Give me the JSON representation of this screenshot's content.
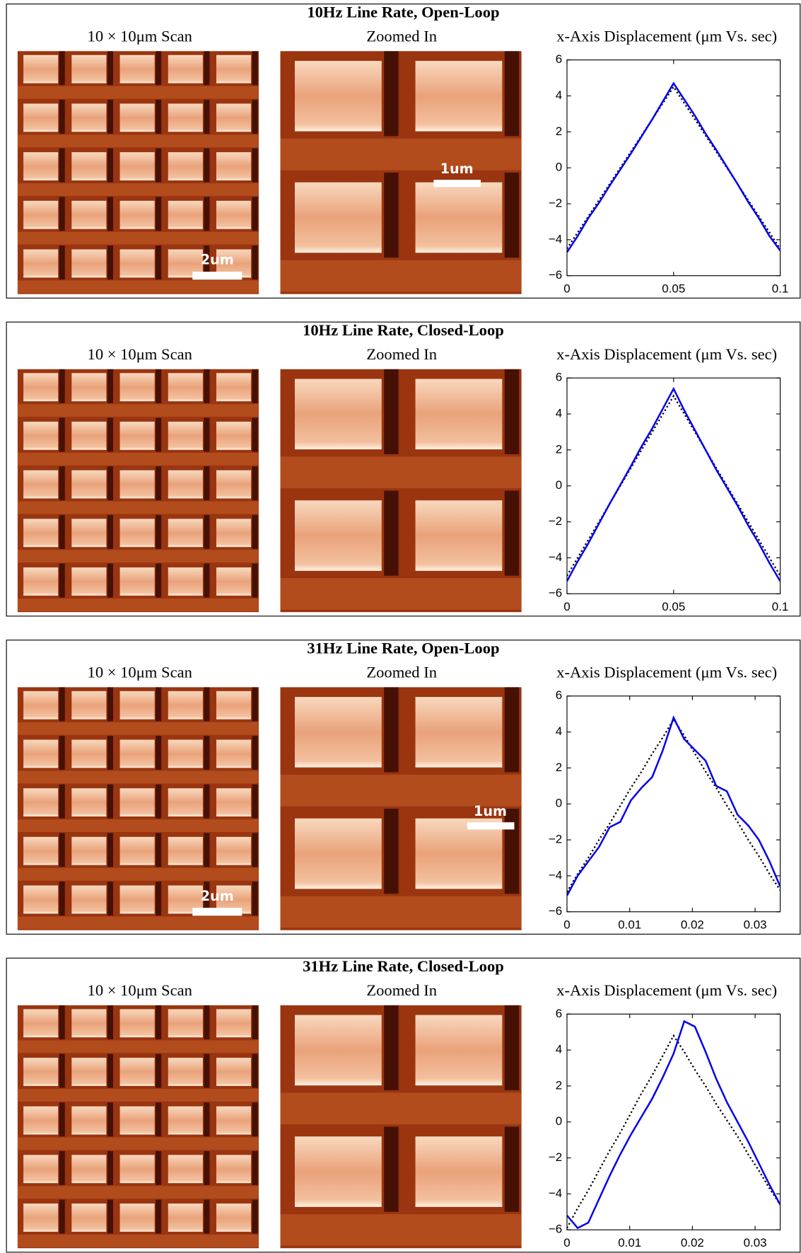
{
  "panels": [
    {
      "title": "10Hz Line Rate, Open-Loop",
      "scan_caption": "10 × 10μm Scan",
      "zoom_caption": "Zoomed In",
      "scan_scale_bar": "2um",
      "zoom_scale_bar": "1um"
    },
    {
      "title": "10Hz Line Rate, Closed-Loop",
      "scan_caption": "10 × 10μm Scan",
      "zoom_caption": "Zoomed In"
    },
    {
      "title": "31Hz Line Rate, Open-Loop",
      "scan_caption": "10 × 10μm Scan",
      "zoom_caption": "Zoomed In",
      "scan_scale_bar": "2um",
      "zoom_scale_bar": "1um"
    },
    {
      "title": "31Hz Line Rate, Closed-Loop",
      "scan_caption": "10 × 10μm Scan",
      "zoom_caption": "Zoomed In"
    }
  ],
  "chart_data": [
    {
      "type": "line",
      "title": "x-Axis Displacement (μm Vs. sec)",
      "x": [
        0,
        0.005,
        0.01,
        0.015,
        0.02,
        0.025,
        0.03,
        0.035,
        0.04,
        0.045,
        0.05,
        0.055,
        0.06,
        0.065,
        0.07,
        0.075,
        0.08,
        0.085,
        0.09,
        0.095,
        0.1
      ],
      "series": [
        {
          "color": "#0000ee",
          "style": "solid",
          "values": [
            -4.7,
            -3.8,
            -2.8,
            -1.95,
            -1.0,
            -0.1,
            0.8,
            1.75,
            2.7,
            3.7,
            4.7,
            3.8,
            2.9,
            1.9,
            1.0,
            0.05,
            -0.9,
            -1.9,
            -2.8,
            -3.8,
            -4.6
          ]
        },
        {
          "color": "#000000",
          "style": "dotted",
          "values": [
            -4.5,
            -3.6,
            -2.7,
            -1.8,
            -0.9,
            0,
            0.9,
            1.8,
            2.7,
            3.6,
            4.5,
            3.6,
            2.7,
            1.8,
            0.9,
            0,
            -0.9,
            -1.8,
            -2.7,
            -3.6,
            -4.5
          ]
        }
      ],
      "xlim": [
        0,
        0.1
      ],
      "xticks": [
        0,
        0.05,
        0.1
      ],
      "ylim": [
        -6,
        6
      ],
      "yticks": [
        {
          "value": -6,
          "label": "−6"
        },
        {
          "value": -4,
          "label": "−4"
        },
        {
          "value": -2,
          "label": "−2"
        },
        0,
        2,
        4,
        6
      ]
    },
    {
      "type": "line",
      "title": "x-Axis Displacement (μm Vs. sec)",
      "x": [
        0,
        0.005,
        0.01,
        0.015,
        0.02,
        0.025,
        0.03,
        0.035,
        0.04,
        0.045,
        0.05,
        0.055,
        0.06,
        0.065,
        0.07,
        0.075,
        0.08,
        0.085,
        0.09,
        0.095,
        0.1
      ],
      "series": [
        {
          "color": "#0000ee",
          "style": "solid",
          "values": [
            -5.3,
            -4.2,
            -3.2,
            -2.1,
            -1.0,
            0.05,
            1.1,
            2.2,
            3.2,
            4.3,
            5.4,
            4.2,
            3.1,
            2.0,
            0.9,
            -0.1,
            -1.1,
            -2.2,
            -3.2,
            -4.3,
            -5.3
          ]
        },
        {
          "color": "#000000",
          "style": "dotted",
          "values": [
            -5,
            -4,
            -3,
            -2,
            -1,
            0,
            1,
            2,
            3,
            4,
            5,
            4,
            3,
            2,
            1,
            0,
            -1,
            -2,
            -3,
            -4,
            -5
          ]
        }
      ],
      "xlim": [
        0,
        0.1
      ],
      "xticks": [
        0,
        0.05,
        0.1
      ],
      "ylim": [
        -6,
        6
      ],
      "yticks": [
        {
          "value": -6,
          "label": "−6"
        },
        {
          "value": -4,
          "label": "−4"
        },
        {
          "value": -2,
          "label": "−2"
        },
        0,
        2,
        4,
        6
      ]
    },
    {
      "type": "line",
      "title": "x-Axis Displacement (μm Vs. sec)",
      "x": [
        0,
        0.0017,
        0.0034,
        0.0051,
        0.0068,
        0.0085,
        0.0102,
        0.0119,
        0.0136,
        0.0153,
        0.017,
        0.0187,
        0.0204,
        0.0221,
        0.0238,
        0.0255,
        0.0272,
        0.0289,
        0.0306,
        0.0323,
        0.034
      ],
      "series": [
        {
          "color": "#0000ee",
          "style": "solid",
          "values": [
            -5.1,
            -4.0,
            -3.2,
            -2.4,
            -1.3,
            -1.0,
            0.2,
            0.9,
            1.5,
            3.0,
            4.8,
            3.6,
            3.0,
            2.4,
            1.0,
            0.7,
            -0.6,
            -1.2,
            -2.0,
            -3.2,
            -4.6
          ]
        },
        {
          "color": "#000000",
          "style": "dotted",
          "values": [
            -4.9,
            -3.9,
            -3.0,
            -2.0,
            -1.1,
            -0.1,
            0.9,
            1.8,
            2.8,
            3.7,
            4.7,
            3.8,
            2.8,
            1.8,
            0.9,
            -0.1,
            -1.0,
            -2.0,
            -2.9,
            -3.9,
            -4.8
          ]
        }
      ],
      "xlim": [
        0,
        0.034
      ],
      "xticks": [
        0,
        0.01,
        0.02,
        0.03
      ],
      "ylim": [
        -6,
        6
      ],
      "yticks": [
        {
          "value": -6,
          "label": "−6"
        },
        {
          "value": -4,
          "label": "−4"
        },
        {
          "value": -2,
          "label": "−2"
        },
        0,
        2,
        4,
        6
      ]
    },
    {
      "type": "line",
      "title": "x-Axis Displacement (μm Vs. sec)",
      "x": [
        0,
        0.0017,
        0.0034,
        0.0051,
        0.0068,
        0.0085,
        0.0102,
        0.0119,
        0.0136,
        0.0153,
        0.017,
        0.0187,
        0.0204,
        0.0221,
        0.0238,
        0.0255,
        0.0272,
        0.0289,
        0.0306,
        0.0323,
        0.034
      ],
      "series": [
        {
          "color": "#0000ee",
          "style": "solid",
          "values": [
            -5.2,
            -5.9,
            -5.6,
            -4.3,
            -3.0,
            -1.8,
            -0.7,
            0.3,
            1.3,
            2.5,
            3.8,
            5.6,
            5.3,
            3.9,
            2.4,
            1.1,
            0.0,
            -1.1,
            -2.3,
            -3.5,
            -4.6
          ]
        },
        {
          "color": "#000000",
          "style": "dotted",
          "values": [
            -5.9,
            -4.8,
            -3.8,
            -2.7,
            -1.6,
            -0.6,
            0.5,
            1.6,
            2.6,
            3.7,
            4.8,
            3.9,
            2.9,
            2.0,
            1.0,
            0.1,
            -0.8,
            -1.8,
            -2.7,
            -3.7,
            -4.6
          ]
        }
      ],
      "xlim": [
        0,
        0.034
      ],
      "xticks": [
        0,
        0.01,
        0.02,
        0.03
      ],
      "ylim": [
        -6,
        6
      ],
      "yticks": [
        {
          "value": -6,
          "label": "−6"
        },
        {
          "value": -4,
          "label": "−4"
        },
        {
          "value": -2,
          "label": "−2"
        },
        0,
        2,
        4,
        6
      ]
    }
  ]
}
